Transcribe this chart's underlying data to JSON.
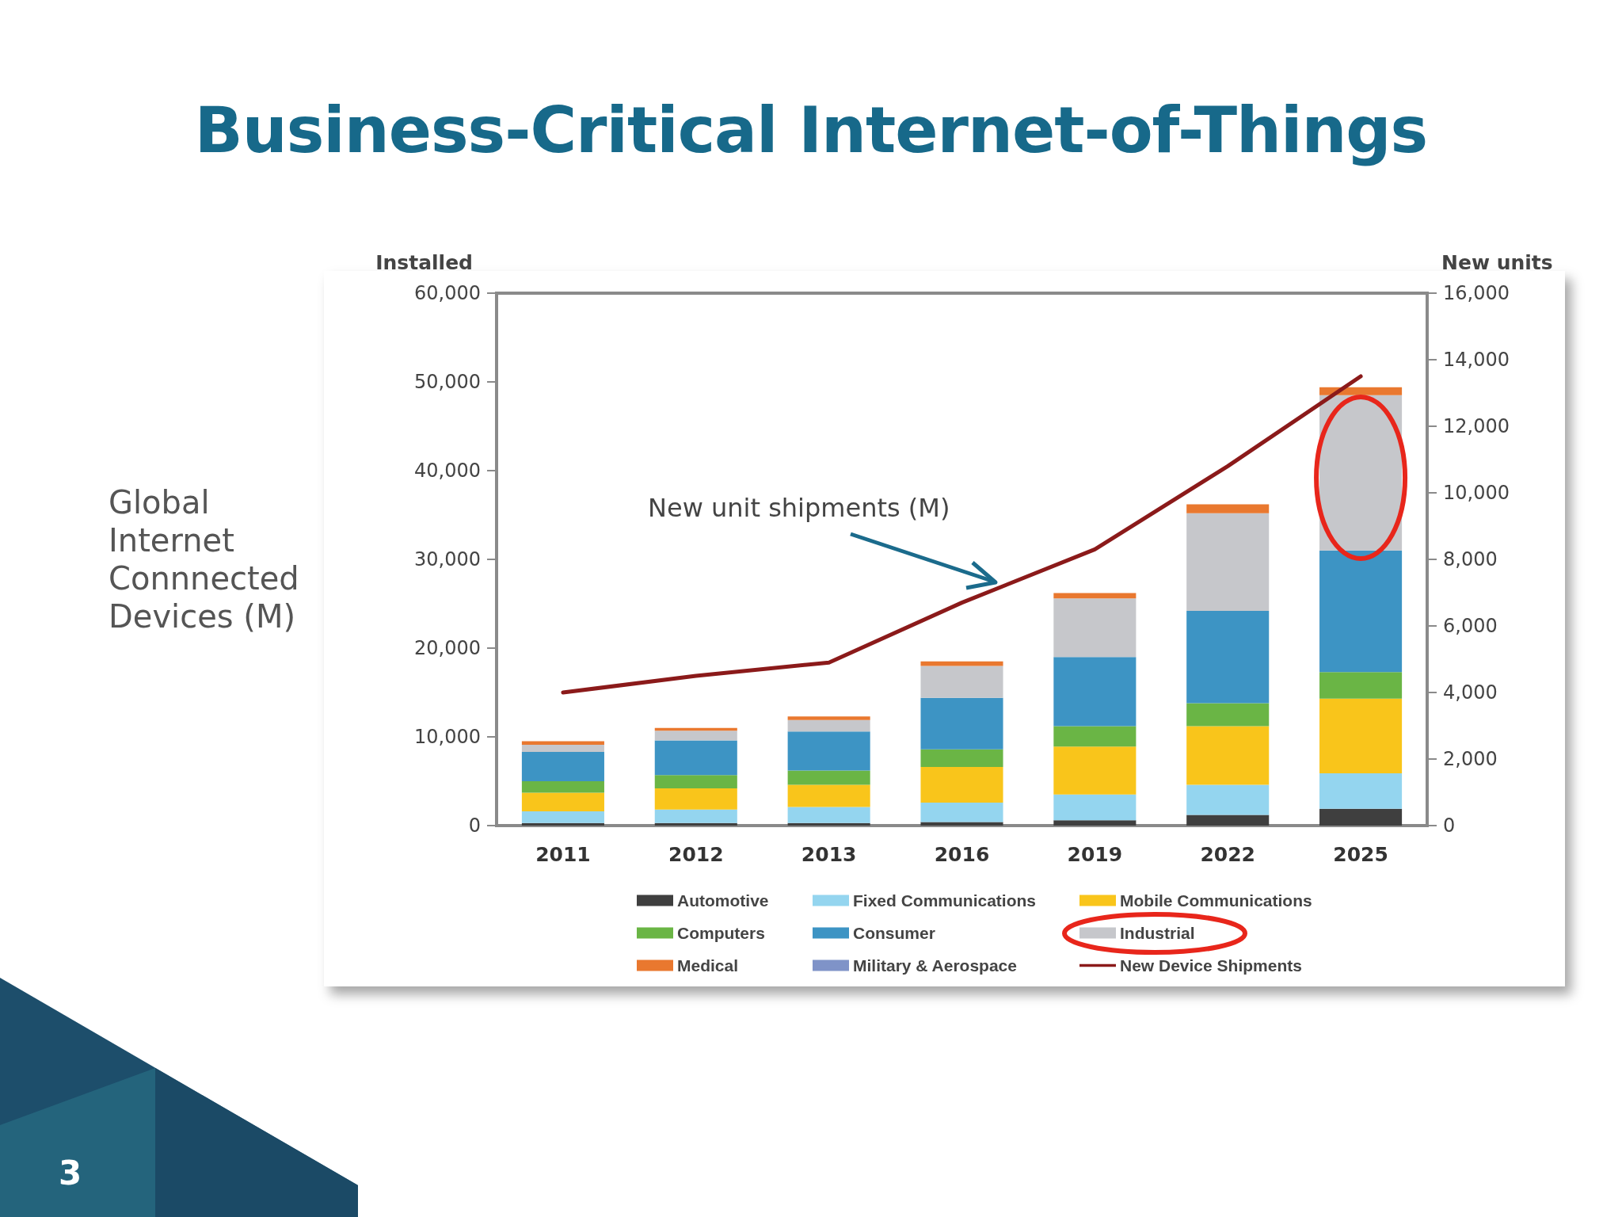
{
  "chart_data": {
    "type": "bar",
    "title": "Business-Critical Internet-of-Things",
    "ylabel": "Installed",
    "y2label": "New units",
    "annotations": [
      "Global Internet Connnected Devices (M)",
      "New unit shipments (M)",
      "3"
    ],
    "categories": [
      "2011",
      "2012",
      "2013",
      "2016",
      "2019",
      "2022",
      "2025"
    ],
    "stacked": true,
    "legend": "bottom",
    "grid": false,
    "marker": "none",
    "line_style": "solid",
    "ylim": [
      0,
      60000
    ],
    "yticks": [
      0,
      {
        "value": 10000,
        "label": "10,000"
      },
      {
        "value": 20000,
        "label": "20,000"
      },
      {
        "value": 30000,
        "label": "30,000"
      },
      {
        "value": 40000,
        "label": "40,000"
      },
      {
        "value": 50000,
        "label": "50,000"
      },
      {
        "value": 60000,
        "label": "60,000"
      }
    ],
    "y2lim": [
      0,
      16000
    ],
    "y2ticks": [
      0,
      {
        "value": 2000,
        "label": "2,000"
      },
      {
        "value": 4000,
        "label": "4,000"
      },
      {
        "value": 6000,
        "label": "6,000"
      },
      {
        "value": 8000,
        "label": "8,000"
      },
      {
        "value": 10000,
        "label": "10,000"
      },
      {
        "value": 12000,
        "label": "12,000"
      },
      {
        "value": 14000,
        "label": "14,000"
      },
      {
        "value": 16000,
        "label": "16,000"
      }
    ],
    "series": [
      {
        "name": "Automotive",
        "color": "#3f3f3f",
        "values": [
          300,
          300,
          300,
          400,
          600,
          1200,
          1900
        ]
      },
      {
        "name": "Fixed Communications",
        "color": "#94d5ef",
        "values": [
          1300,
          1500,
          1800,
          2200,
          2900,
          3400,
          4000
        ]
      },
      {
        "name": "Mobile Communications",
        "color": "#f9c51b",
        "values": [
          2100,
          2400,
          2500,
          4000,
          5400,
          6600,
          8400
        ]
      },
      {
        "name": "Computers",
        "color": "#6ab545",
        "values": [
          1300,
          1500,
          1600,
          2000,
          2300,
          2600,
          3000
        ]
      },
      {
        "name": "Consumer",
        "color": "#3d94c4",
        "values": [
          3300,
          3900,
          4400,
          5800,
          7800,
          10400,
          13700
        ]
      },
      {
        "name": "Industrial",
        "color": "#c6c7cb",
        "values": [
          800,
          1100,
          1300,
          3600,
          6600,
          11000,
          17500
        ]
      },
      {
        "name": "Medical",
        "color": "#e9782f",
        "values": [
          400,
          300,
          400,
          500,
          600,
          1000,
          900
        ]
      },
      {
        "name": "Military & Aerospace",
        "color": "#7f93c8",
        "values": [
          null,
          null,
          null,
          null,
          null,
          null,
          null
        ]
      },
      {
        "name": "New Device Shipments",
        "type": "line",
        "axis": "y2",
        "color": "#8b1a1a",
        "values": [
          4000,
          4500,
          4900,
          6700,
          8300,
          10800,
          13500
        ]
      }
    ]
  }
}
